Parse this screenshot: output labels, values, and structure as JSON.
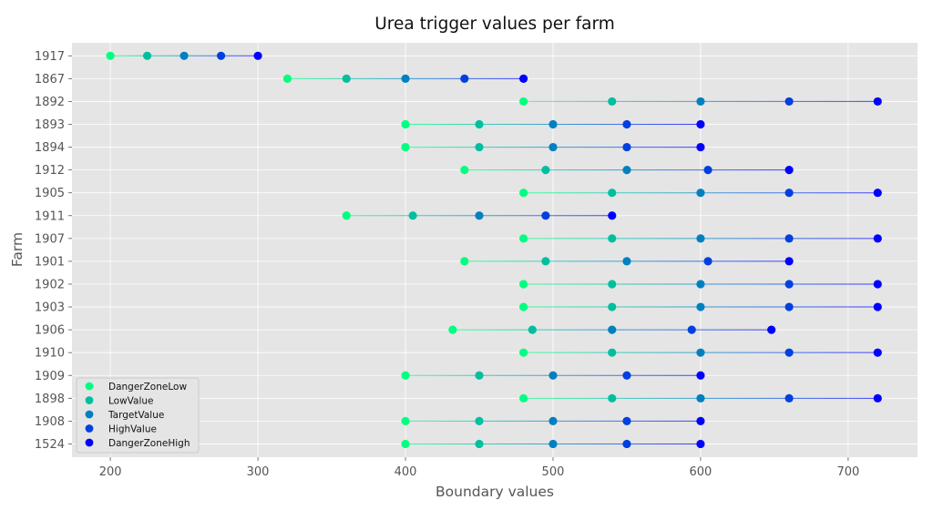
{
  "chart_data": {
    "type": "scatter",
    "title": "Urea trigger values per farm",
    "xlabel": "Boundary values",
    "ylabel": "Farm",
    "xlim": [
      174,
      747
    ],
    "xticks": [
      200,
      300,
      400,
      500,
      600,
      700
    ],
    "grid": true,
    "legend_position": "bottom-left",
    "categories": [
      "1917",
      "1867",
      "1892",
      "1893",
      "1894",
      "1912",
      "1905",
      "1911",
      "1907",
      "1901",
      "1902",
      "1903",
      "1906",
      "1910",
      "1909",
      "1898",
      "1908",
      "1524"
    ],
    "series": [
      {
        "name": "DangerZoneLow",
        "color": "#00ff80",
        "values": [
          200,
          320,
          480,
          400,
          400,
          440,
          480,
          360,
          480,
          440,
          480,
          480,
          432,
          480,
          400,
          480,
          400,
          400
        ]
      },
      {
        "name": "LowValue",
        "color": "#00bf9f",
        "values": [
          225,
          360,
          540,
          450,
          450,
          495,
          540,
          405,
          540,
          495,
          540,
          540,
          486,
          540,
          450,
          540,
          450,
          450
        ]
      },
      {
        "name": "TargetValue",
        "color": "#0080bf",
        "values": [
          250,
          400,
          600,
          500,
          500,
          550,
          600,
          450,
          600,
          550,
          600,
          600,
          540,
          600,
          500,
          600,
          500,
          500
        ]
      },
      {
        "name": "HighValue",
        "color": "#0040df",
        "values": [
          275,
          440,
          660,
          550,
          550,
          605,
          660,
          495,
          660,
          605,
          660,
          660,
          594,
          660,
          550,
          660,
          550,
          550
        ]
      },
      {
        "name": "DangerZoneHigh",
        "color": "#0000ff",
        "values": [
          300,
          480,
          720,
          600,
          600,
          660,
          720,
          540,
          720,
          660,
          720,
          720,
          648,
          720,
          600,
          720,
          600,
          600
        ]
      }
    ]
  }
}
